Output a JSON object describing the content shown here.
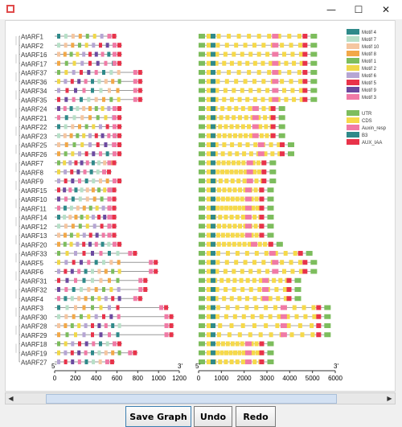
{
  "window": {
    "minimize": "—",
    "maximize": "☐",
    "close": "✕"
  },
  "genes": [
    "AtARF1",
    "AtARF2",
    "AtARF16",
    "AtARF17",
    "AtARF37",
    "AtARF36",
    "AtARF34",
    "AtARF35",
    "AtARF24",
    "AtARF21",
    "AtARF22",
    "AtARF23",
    "AtARF25",
    "AtARF26",
    "AtARF7",
    "AtARF8",
    "AtARF9",
    "AtARF15",
    "AtARF10",
    "AtARF11",
    "AtARF14",
    "AtARF12",
    "AtARF13",
    "AtARF20",
    "AtARF33",
    "AtARF5",
    "AtARF6",
    "AtARF31",
    "AtARF32",
    "AtARF4",
    "AtARF3",
    "AtARF30",
    "AtARF28",
    "AtARF29",
    "AtARF18",
    "AtARF19",
    "AtARF27"
  ],
  "protein_axis": {
    "left_label": "5'",
    "right_label": "3'",
    "ticks": [
      "0",
      "200",
      "400",
      "600",
      "800",
      "1000",
      "1200"
    ],
    "max": 1200
  },
  "gene_axis": {
    "left_label": "5'",
    "right_label": "3'",
    "ticks": [
      "0",
      "1000",
      "2000",
      "3000",
      "4000",
      "5000",
      "6000"
    ],
    "max": 6000
  },
  "motif_legend": [
    {
      "name": "Motif 4",
      "color": "#2f8a8a"
    },
    {
      "name": "Motif 7",
      "color": "#b8e0c8"
    },
    {
      "name": "Motif 10",
      "color": "#f5c6a0"
    },
    {
      "name": "Motif 8",
      "color": "#f2a848"
    },
    {
      "name": "Motif 1",
      "color": "#7dbd5d"
    },
    {
      "name": "Motif 2",
      "color": "#f0d84a"
    },
    {
      "name": "Motif 6",
      "color": "#b6a6d4"
    },
    {
      "name": "Motif 5",
      "color": "#e8334a"
    },
    {
      "name": "Motif 9",
      "color": "#6c4aa0"
    },
    {
      "name": "Motif 3",
      "color": "#f07aa6"
    }
  ],
  "structure_legend": [
    {
      "name": "UTR",
      "color": "#7dbd5d"
    },
    {
      "name": "CDS",
      "color": "#f6d94a"
    },
    {
      "name": "Auxin_resp",
      "color": "#f07aa6"
    },
    {
      "name": "B3",
      "color": "#2f8a8a"
    },
    {
      "name": "AUX_IAA",
      "color": "#e8334a"
    }
  ],
  "buttons": {
    "save": "Save Graph",
    "undo": "Undo",
    "redo": "Redo"
  }
}
